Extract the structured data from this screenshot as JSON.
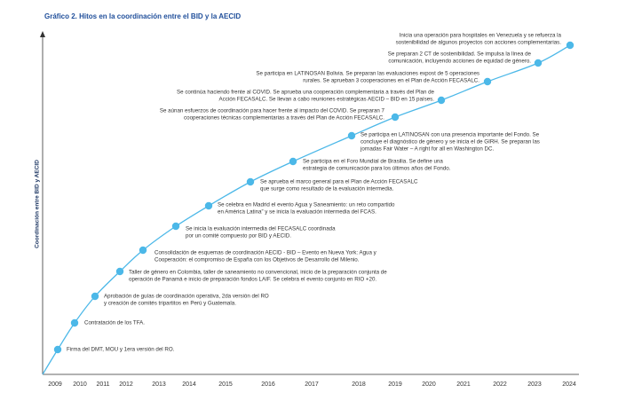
{
  "chart_data": {
    "type": "timeline",
    "title": "Gráfico 2.  Hitos en la coordinación entre el BID y la AECID",
    "y_label": "Coordinación entre BID y AECID",
    "color": "#4cb8e8",
    "categories": [
      "2009",
      "2010",
      "2011",
      "2012",
      "2013",
      "2014",
      "2015",
      "2016",
      "2017",
      "2018",
      "2019",
      "2020",
      "2021",
      "2022",
      "2023",
      "2024"
    ],
    "events": [
      {
        "lines": [
          "Firma del DMT, MOU y 1era versión del RO."
        ]
      },
      {
        "lines": [
          "Contratación de los TFA."
        ]
      },
      {
        "lines": [
          "Aprobación de guías de coordinación operativa, 2da versión del RO",
          "y creación de comités tripartitos en Perú y Guatemala."
        ]
      },
      {
        "lines": [
          "Taller de género en Colombia, taller de saneamiento no convencional, inicio de la preparación conjunta de",
          "operación de Panamá e inicio de preparación fondos LAIF. Se celebra el evento conjunto en RIO +20."
        ]
      },
      {
        "lines": [
          "Consolidación de esquemas de coordinación AECID - BID – Evento en Nueva York: Agua y",
          "Cooperación: el compromiso de España con los Objetivos de Desarrollo del Milenio."
        ]
      },
      {
        "lines": [
          "Se inicia la evaluación intermedia del FECASALC coordinada",
          "por un comité compuesto por  BID y AECID."
        ]
      },
      {
        "lines": [
          "Se celebra en Madrid el evento Agua y Saneamiento: un reto compartido",
          "en América Latina” y se inicia la evaluación intermedia del FCAS."
        ]
      },
      {
        "lines": [
          "Se aprueba el marco general para el Plan de Acción FECASALC",
          "que surge como resultado de la evaluación intermedia."
        ]
      },
      {
        "lines": [
          "Se participa en el Foro Mundial de Brasilia. Se define una",
          "estrategia de comunicación para los últimos años del Fondo."
        ]
      },
      {
        "lines": [
          "Se participa en LATINOSAN con una presencia importante del Fondo. Se",
          "concluye el diagnóstico de género y se inicia el de GIRH. Se preparan las",
          "jornadas Fair Water – A right for all en Washington DC."
        ]
      },
      {
        "lines": [
          "Se aúnan esfuerzos de coordinación para hacer frente al impacto del COVID. Se preparan  7",
          "cooperaciones técnicas complementarias a través del Plan de Acción FECASALC."
        ]
      },
      {
        "lines": [
          "Se continúa haciendo frente al COVID. Se aprueba una cooperación complementaria a través del Plan de",
          "Acción FECASALC. Se llevan a cabo reuniones estratégicas AECID – BID en 15 países."
        ]
      },
      {
        "lines": [
          "Se participa en LATINOSAN Bolivia. Se preparan las evaluaciones expost de 5 operaciones",
          "rurales. Se aprueban 3 cooperaciones en el Plan de Acción FECASALC."
        ]
      },
      {
        "lines": [
          "Se preparan 2 CT de sostenibilidad. Se impulsa la línea de",
          "comunicación, incluyendo acciones de equidad de género."
        ]
      },
      {
        "lines": [
          "Inicia una operación para hospitales en Venezuela y se refuerza la",
          "sostenibilidad de algunos proyectos con acciones complementarias."
        ]
      }
    ]
  }
}
